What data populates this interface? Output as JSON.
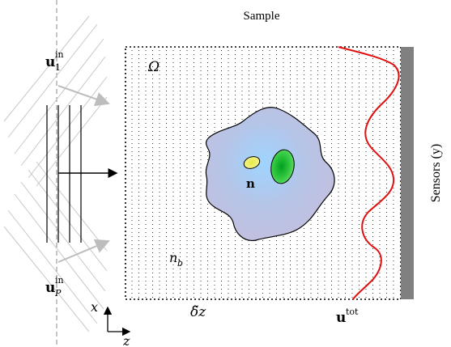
{
  "labels": {
    "sample": "Sample",
    "omega": "Ω",
    "n_bold": "n",
    "nb_main": "n",
    "nb_sub": "b",
    "delta_z": "δ̃z",
    "u_tot_main": "u",
    "u_tot_sup": "tot",
    "u1_main": "u",
    "u1_sup": "in",
    "u1_sub": "1",
    "up_main": "u",
    "up_sup": "in",
    "up_sub": "P",
    "axis_x": "x",
    "axis_z": "z",
    "sensors": "Sensors (y)"
  },
  "colors": {
    "cell_fill": "#a9c7e3",
    "cell_edge": "#000000",
    "nucleus_yellow": "#eef060",
    "nucleus_green": "#33c840",
    "total_field": "#e01010",
    "sensor_bar": "#808080",
    "arrows_gray": "#b8b8b8"
  },
  "icons": [
    "incident-arrow-icon",
    "axis-arrow-icon"
  ]
}
